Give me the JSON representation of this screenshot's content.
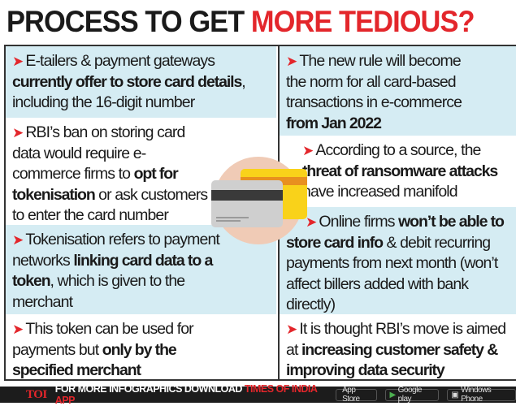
{
  "title": {
    "part1": "PROCESS TO GET ",
    "part2": "MORE TEDIOUS?"
  },
  "left": [
    {
      "a": "E-tailers & payment gateways ",
      "b": "currently offer to store card details",
      "c": ", including the 16-digit number"
    },
    {
      "a": "RBI’s ban on storing card data would require e-commerce firms to ",
      "b": "opt for tokenisation",
      "c": " or ask customers to enter the card number"
    },
    {
      "a": "Tokenisation refers to payment networks ",
      "b": "linking card data to a token",
      "c": ", which is given to the merchant"
    },
    {
      "a": "This token can be used for payments but ",
      "b": "only by the specified merchant",
      "c": ""
    }
  ],
  "right": [
    {
      "a": "The new rule will become the norm for all card-based transactions in e-commerce ",
      "b": "from Jan 2022",
      "c": ""
    },
    {
      "a": "According to a source, the ",
      "b": "threat of ransomware attacks",
      "c": " have increased manifold"
    },
    {
      "a": "Online firms ",
      "b": "won’t be able to store card info",
      "c": " & debit recurring payments from next month (won’t affect billers added with bank directly)"
    },
    {
      "a": "It is thought RBI’s move is aimed at ",
      "b": "increasing customer safety & improving data security",
      "c": ""
    }
  ],
  "footer": {
    "logo": "TOI",
    "text": "FOR MORE  INFOGRAPHICS DOWNLOAD",
    "app": "TIMES OF INDIA APP",
    "stores": [
      "App Store",
      "Google play",
      "Windows Phone"
    ]
  },
  "colors": {
    "accent": "#e3262b",
    "row_blue": "#d5ecf3",
    "circle": "#f0cbb6",
    "card_yellow": "#f9d21a"
  }
}
